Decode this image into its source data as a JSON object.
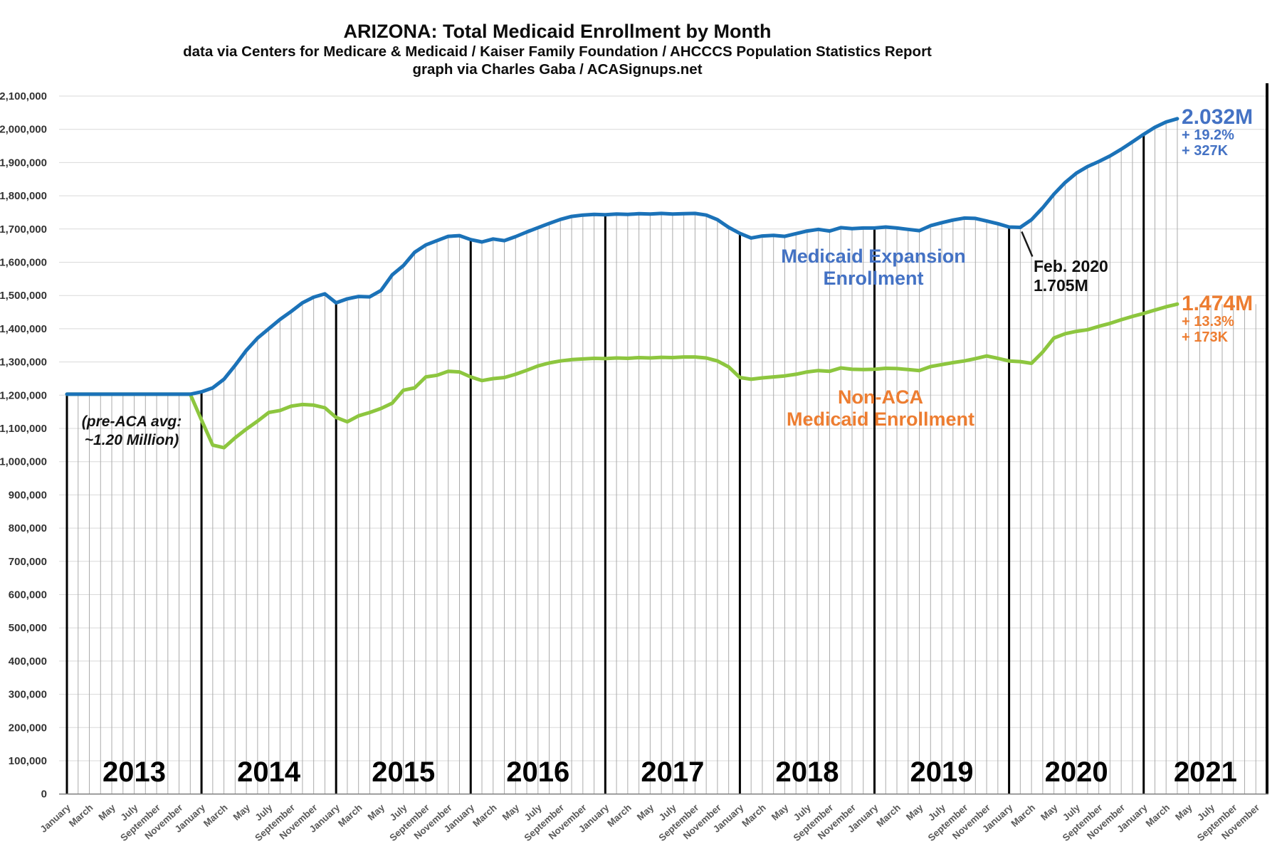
{
  "title": {
    "line1": "ARIZONA: Total Medicaid Enrollment by Month",
    "line2": "data via Centers for Medicare & Medicaid / Kaiser Family Foundation / AHCCCS Population Statistics Report",
    "line3": "graph via Charles Gaba / ACASignups.net"
  },
  "annotations": {
    "pre_aca": {
      "line1": "(pre-ACA avg:",
      "line2": "~1.20 Million)"
    },
    "expansion_legend": {
      "line1": "Medicaid Expansion",
      "line2": "Enrollment"
    },
    "nonaca_legend": {
      "line1": "Non-ACA",
      "line2": "Medicaid Enrollment"
    },
    "feb_2020": {
      "line1": "Feb. 2020",
      "line2": "1.705M"
    },
    "expansion_end": {
      "value": "2.032M",
      "pct": "+ 19.2%",
      "delta": "+ 327K"
    },
    "nonaca_end": {
      "value": "1.474M",
      "pct": "+ 13.3%",
      "delta": "+ 173K"
    }
  },
  "colors": {
    "expansion_line": "#1B72B8",
    "expansion_text": "#4472C4",
    "nonaca_line": "#8DC63F",
    "nonaca_text": "#ED7D31",
    "grid_h": "#D9D9D9",
    "grid_v": "#ABABAB",
    "year_line": "#000000",
    "axis": "#808080",
    "y_tick_text": "#333333",
    "month_text": "#595959",
    "year_text": "#000000"
  },
  "chart_data": {
    "type": "line",
    "title": "ARIZONA: Total Medicaid Enrollment by Month",
    "x_unit": "month",
    "x_axis_start": "January 2013",
    "x_axis_end": "December 2021",
    "data_end": "April 2021",
    "x_total_months": 108,
    "grid": true,
    "ylim": [
      0,
      2100000
    ],
    "y_tick_step": 100000,
    "y_ticks": [
      {
        "value": 2100000,
        "label": "2,100,000"
      },
      {
        "value": 2000000,
        "label": "2,000,000"
      },
      {
        "value": 1900000,
        "label": "1,900,000"
      },
      {
        "value": 1800000,
        "label": "1,800,000"
      },
      {
        "value": 1700000,
        "label": "1,700,000"
      },
      {
        "value": 1600000,
        "label": "1,600,000"
      },
      {
        "value": 1500000,
        "label": "1,500,000"
      },
      {
        "value": 1400000,
        "label": "1,400,000"
      },
      {
        "value": 1300000,
        "label": "1,300,000"
      },
      {
        "value": 1200000,
        "label": "1,200,000"
      },
      {
        "value": 1100000,
        "label": "1,100,000"
      },
      {
        "value": 1000000,
        "label": "1,000,000"
      },
      {
        "value": 900000,
        "label": "900,000"
      },
      {
        "value": 800000,
        "label": "800,000"
      },
      {
        "value": 700000,
        "label": "700,000"
      },
      {
        "value": 600000,
        "label": "600,000"
      },
      {
        "value": 500000,
        "label": "500,000"
      },
      {
        "value": 400000,
        "label": "400,000"
      },
      {
        "value": 300000,
        "label": "300,000"
      },
      {
        "value": 200000,
        "label": "200,000"
      },
      {
        "value": 100000,
        "label": "100,000"
      },
      {
        "value": 0,
        "label": "0"
      }
    ],
    "years": [
      "2013",
      "2014",
      "2015",
      "2016",
      "2017",
      "2018",
      "2019",
      "2020",
      "2021"
    ],
    "month_tick_names": [
      "January",
      "March",
      "May",
      "July",
      "September",
      "November"
    ],
    "month_tick_offsets": [
      0,
      2,
      4,
      6,
      8,
      10
    ],
    "callout": {
      "label": "Feb. 2020",
      "series": "Medicaid Expansion Enrollment",
      "month_index": 85,
      "value": 1705000
    },
    "series": [
      {
        "name": "Non-ACA Medicaid Enrollment",
        "color": "#8DC63F",
        "values": [
          1203000,
          1203000,
          1203000,
          1203000,
          1203000,
          1203000,
          1203000,
          1203000,
          1203000,
          1203000,
          1203000,
          1203000,
          1125000,
          1050000,
          1042000,
          1072000,
          1098000,
          1122000,
          1148000,
          1154000,
          1167000,
          1172000,
          1170000,
          1162000,
          1133000,
          1120000,
          1138000,
          1148000,
          1160000,
          1176000,
          1215000,
          1222000,
          1255000,
          1260000,
          1272000,
          1270000,
          1255000,
          1244000,
          1250000,
          1253000,
          1263000,
          1275000,
          1288000,
          1297000,
          1303000,
          1307000,
          1309000,
          1311000,
          1310000,
          1312000,
          1311000,
          1313000,
          1312000,
          1314000,
          1313000,
          1315000,
          1315000,
          1312000,
          1303000,
          1285000,
          1253000,
          1248000,
          1252000,
          1255000,
          1258000,
          1263000,
          1270000,
          1274000,
          1272000,
          1282000,
          1278000,
          1277000,
          1278000,
          1281000,
          1280000,
          1277000,
          1274000,
          1286000,
          1292000,
          1298000,
          1303000,
          1310000,
          1318000,
          1311000,
          1303000,
          1301000,
          1296000,
          1330000,
          1372000,
          1385000,
          1392000,
          1397000,
          1407000,
          1416000,
          1427000,
          1437000,
          1446000,
          1456000,
          1466000,
          1474000
        ]
      },
      {
        "name": "Medicaid Expansion Enrollment",
        "color": "#1B72B8",
        "values": [
          1203000,
          1203000,
          1203000,
          1203000,
          1203000,
          1203000,
          1203000,
          1203000,
          1203000,
          1203000,
          1203000,
          1203000,
          1210000,
          1222000,
          1248000,
          1290000,
          1335000,
          1372000,
          1400000,
          1428000,
          1452000,
          1478000,
          1495000,
          1505000,
          1478000,
          1490000,
          1497000,
          1496000,
          1515000,
          1562000,
          1590000,
          1630000,
          1652000,
          1665000,
          1678000,
          1680000,
          1668000,
          1661000,
          1670000,
          1665000,
          1677000,
          1691000,
          1704000,
          1717000,
          1729000,
          1738000,
          1742000,
          1744000,
          1743000,
          1745000,
          1744000,
          1746000,
          1745000,
          1747000,
          1745000,
          1746000,
          1747000,
          1742000,
          1728000,
          1705000,
          1687000,
          1673000,
          1679000,
          1681000,
          1678000,
          1686000,
          1694000,
          1699000,
          1694000,
          1704000,
          1701000,
          1703000,
          1703000,
          1706000,
          1703000,
          1699000,
          1695000,
          1710000,
          1719000,
          1727000,
          1733000,
          1732000,
          1724000,
          1716000,
          1706000,
          1705000,
          1728000,
          1764000,
          1805000,
          1840000,
          1868000,
          1888000,
          1903000,
          1920000,
          1940000,
          1962000,
          1985000,
          2006000,
          2022000,
          2032000
        ]
      }
    ]
  }
}
